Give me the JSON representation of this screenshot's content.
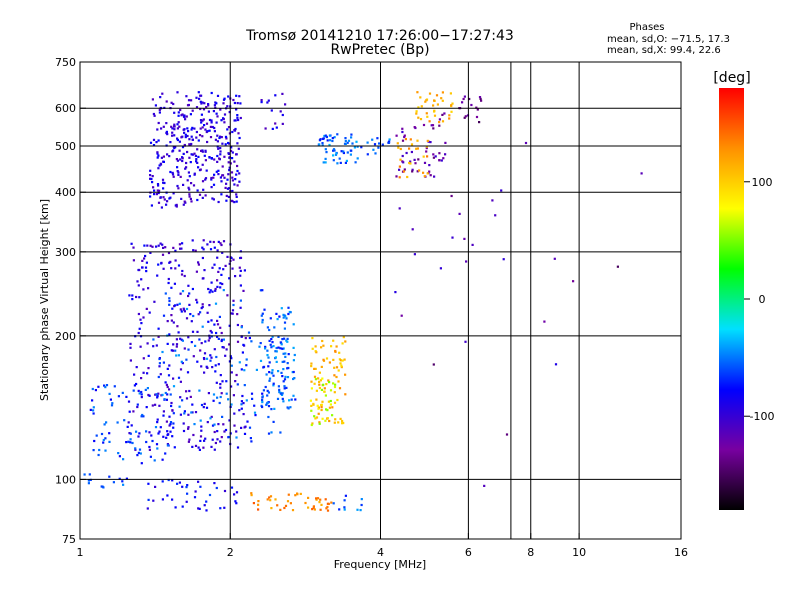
{
  "chart_data": {
    "type": "scatter",
    "title": "Tromsø 20141210 17:26:00−17:27:43",
    "subtitle": "RwPretec (Bp)",
    "xlabel": "Frequency [MHz]",
    "ylabel": "Stationary phase Virtual Height [km]",
    "x_scale": "log",
    "y_scale": "log",
    "xlim": [
      1,
      16
    ],
    "ylim": [
      75,
      750
    ],
    "x_ticks": [
      1,
      2,
      4,
      6,
      8,
      10,
      16
    ],
    "x_tick_labels": [
      "1",
      "2",
      "4",
      "6",
      "8",
      "10",
      "16"
    ],
    "x_grid": [
      2,
      4,
      6,
      7.3,
      8,
      10
    ],
    "y_ticks": [
      75,
      100,
      200,
      300,
      400,
      500,
      600,
      750
    ],
    "y_tick_labels": [
      "75",
      "100",
      "200",
      "300",
      "400",
      "500",
      "600",
      "750"
    ],
    "y_grid": [
      100,
      200,
      300,
      400,
      500,
      600
    ],
    "info": {
      "heading": "Phases",
      "line_o": "mean, sd,O: −71.5, 17.3",
      "line_x": "mean, sd,X:  99.4, 22.6"
    },
    "colorbar": {
      "label": "[deg]",
      "range": [
        -180,
        180
      ],
      "ticks": [
        100,
        0,
        -100
      ],
      "tick_labels": [
        "100",
        "0",
        "-100"
      ],
      "colormap": [
        "#000000",
        "#7800a0",
        "#0000ff",
        "#00e0ff",
        "#00ff00",
        "#ffff00",
        "#ff9000",
        "#ff0000"
      ]
    },
    "clusters": [
      {
        "f": [
          1.38,
          1.62
        ],
        "h": [
          370,
          650
        ],
        "phase": -95,
        "n": 140
      },
      {
        "f": [
          1.62,
          2.1
        ],
        "h": [
          380,
          650
        ],
        "phase": -95,
        "n": 260
      },
      {
        "f": [
          2.3,
          2.6
        ],
        "h": [
          540,
          650
        ],
        "phase": -95,
        "n": 15
      },
      {
        "f": [
          3.0,
          3.6
        ],
        "h": [
          460,
          530
        ],
        "phase": -55,
        "n": 60
      },
      {
        "f": [
          3.6,
          4.3
        ],
        "h": [
          480,
          520
        ],
        "phase": -60,
        "n": 15
      },
      {
        "f": [
          4.3,
          5.4
        ],
        "h": [
          430,
          560
        ],
        "phase": -120,
        "n": 50
      },
      {
        "f": [
          4.3,
          5.0
        ],
        "h": [
          430,
          520
        ],
        "phase": 120,
        "n": 25
      },
      {
        "f": [
          4.7,
          5.6
        ],
        "h": [
          560,
          650
        ],
        "phase": 115,
        "n": 35
      },
      {
        "f": [
          5.2,
          6.5
        ],
        "h": [
          560,
          640
        ],
        "phase": -135,
        "n": 20
      },
      {
        "f": [
          1.25,
          2.15
        ],
        "h": [
          115,
          320
        ],
        "phase": -95,
        "n": 380
      },
      {
        "f": [
          1.05,
          1.55
        ],
        "h": [
          108,
          160
        ],
        "phase": -65,
        "n": 90
      },
      {
        "f": [
          1.4,
          2.6
        ],
        "h": [
          120,
          250
        ],
        "phase": -60,
        "n": 140
      },
      {
        "f": [
          2.3,
          2.7
        ],
        "h": [
          140,
          230
        ],
        "phase": -55,
        "n": 110
      },
      {
        "f": [
          2.9,
          3.4
        ],
        "h": [
          130,
          200
        ],
        "phase": 110,
        "n": 90
      },
      {
        "f": [
          2.9,
          3.3
        ],
        "h": [
          130,
          165
        ],
        "phase": 65,
        "n": 25
      },
      {
        "f": [
          1.0,
          1.25
        ],
        "h": [
          96,
          104
        ],
        "phase": -60,
        "n": 15
      },
      {
        "f": [
          1.35,
          2.1
        ],
        "h": [
          86,
          100
        ],
        "phase": -80,
        "n": 40
      },
      {
        "f": [
          2.2,
          3.2
        ],
        "h": [
          86,
          94
        ],
        "phase": 130,
        "n": 45
      },
      {
        "f": [
          3.2,
          3.7
        ],
        "h": [
          86,
          93
        ],
        "phase": -55,
        "n": 10
      },
      {
        "f": [
          4.2,
          9.0
        ],
        "h": [
          150,
          450
        ],
        "phase": -110,
        "n": 15
      },
      {
        "f": [
          5.0,
          13.5
        ],
        "h": [
          80,
          550
        ],
        "phase": -130,
        "n": 12
      }
    ]
  }
}
